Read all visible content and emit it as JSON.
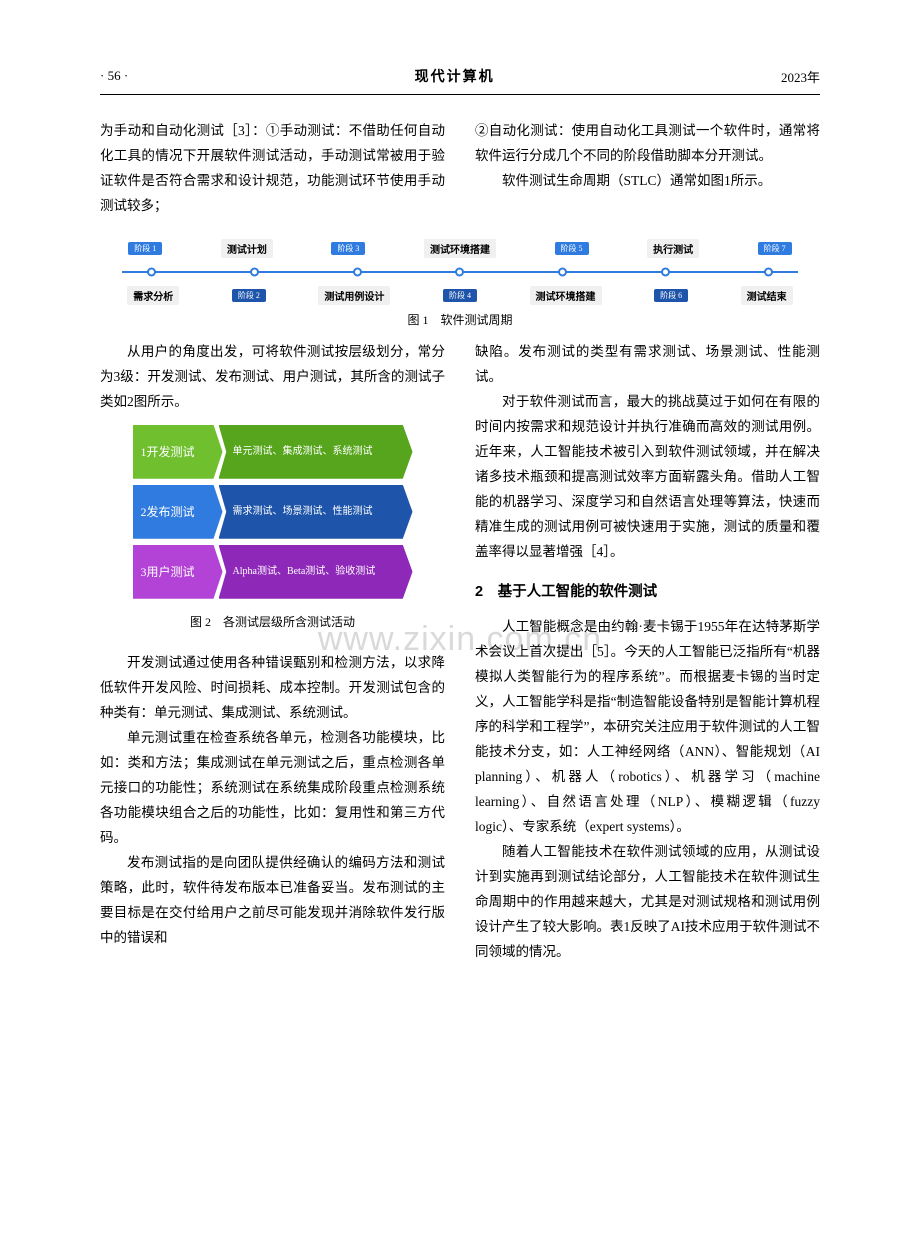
{
  "header": {
    "page": "· 56 ·",
    "journal": "现代计算机",
    "year": "2023年"
  },
  "top": {
    "left": "为手动和自动化测试［3］：①手动测试：不借助任何自动化工具的情况下开展软件测试活动，手动测试常被用于验证软件是否符合需求和设计规范，功能测试环节使用手动测试较多；",
    "right1": "②自动化测试：使用自动化工具测试一个软件时，通常将软件运行分成几个不同的阶段借助脚本分开测试。",
    "right2": "软件测试生命周期（STLC）通常如图1所示。"
  },
  "fig1": {
    "caption": "图 1　软件测试周期",
    "stages_top": [
      "阶段 1",
      "测试计划",
      "阶段 3",
      "测试环境搭建",
      "阶段 5",
      "执行测试",
      "阶段 7"
    ],
    "stages_bot": [
      "需求分析",
      "阶段 2",
      "测试用例设计",
      "阶段 4",
      "测试环境搭建",
      "阶段 6",
      "测试结束"
    ],
    "badge_color": "#2f7be0",
    "badge_alt_color": "#1e55aa",
    "line_color": "#2f7be0",
    "label_bg": "#f0f0f0"
  },
  "mid_left_para": "从用户的角度出发，可将软件测试按层级划分，常分为3级：开发测试、发布测试、用户测试，其所含的测试子类如2图所示。",
  "fig2": {
    "caption": "图 2　各测试层级所含测试活动",
    "rows": [
      {
        "left": "1开发测试",
        "right": "单元测试、集成测试、系统测试",
        "left_color": "#6fbf2f",
        "right_color": "#57a51d"
      },
      {
        "left": "2发布测试",
        "right": "需求测试、场景测试、性能测试",
        "left_color": "#2f7be0",
        "right_color": "#1e55aa"
      },
      {
        "left": "3用户测试",
        "right": "Alpha测试、Beta测试、验收测试",
        "left_color": "#b342d6",
        "right_color": "#8e28b8"
      }
    ]
  },
  "left_p1": "开发测试通过使用各种错误甄别和检测方法，以求降低软件开发风险、时间损耗、成本控制。开发测试包含的种类有：单元测试、集成测试、系统测试。",
  "left_p2": "单元测试重在检查系统各单元，检测各功能模块，比如：类和方法；集成测试在单元测试之后，重点检测各单元接口的功能性；系统测试在系统集成阶段重点检测系统各功能模块组合之后的功能性，比如：复用性和第三方代码。",
  "left_p3": "发布测试指的是向团队提供经确认的编码方法和测试策略，此时，软件待发布版本已准备妥当。发布测试的主要目标是在交付给用户之前尽可能发现并消除软件发行版中的错误和",
  "right_p1": "缺陷。发布测试的类型有需求测试、场景测试、性能测试。",
  "right_p2": "对于软件测试而言，最大的挑战莫过于如何在有限的时间内按需求和规范设计并执行准确而高效的测试用例。近年来，人工智能技术被引入到软件测试领域，并在解决诸多技术瓶颈和提高测试效率方面崭露头角。借助人工智能的机器学习、深度学习和自然语言处理等算法，快速而精准生成的测试用例可被快速用于实施，测试的质量和覆盖率得以显著增强［4］。",
  "section2_title": "2　基于人工智能的软件测试",
  "right_p3": "人工智能概念是由约翰·麦卡锡于1955年在达特茅斯学术会议上首次提出［5］。今天的人工智能已泛指所有“机器模拟人类智能行为的程序系统”。而根据麦卡锡的当时定义，人工智能学科是指“制造智能设备特别是智能计算机程序的科学和工程学”，本研究关注应用于软件测试的人工智能技术分支，如：人工神经网络（ANN）、智能规划（AI planning）、机器人（robotics）、机器学习（machine learning）、自然语言处理（NLP）、模糊逻辑（fuzzy logic）、专家系统（expert systems）。",
  "right_p4": "随着人工智能技术在软件测试领域的应用，从测试设计到实施再到测试结论部分，人工智能技术在软件测试生命周期中的作用越来越大，尤其是对测试规格和测试用例设计产生了较大影响。表1反映了AI技术应用于软件测试不同领域的情况。",
  "watermark": "www.zixin.com.cn"
}
